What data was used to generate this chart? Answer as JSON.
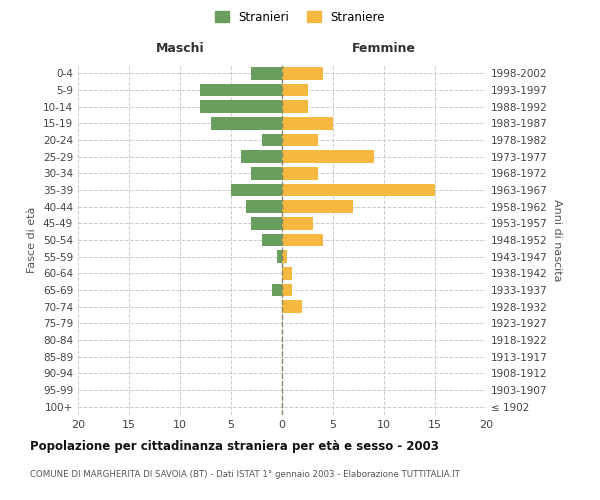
{
  "age_groups": [
    "100+",
    "95-99",
    "90-94",
    "85-89",
    "80-84",
    "75-79",
    "70-74",
    "65-69",
    "60-64",
    "55-59",
    "50-54",
    "45-49",
    "40-44",
    "35-39",
    "30-34",
    "25-29",
    "20-24",
    "15-19",
    "10-14",
    "5-9",
    "0-4"
  ],
  "birth_years": [
    "≤ 1902",
    "1903-1907",
    "1908-1912",
    "1913-1917",
    "1918-1922",
    "1923-1927",
    "1928-1932",
    "1933-1937",
    "1938-1942",
    "1943-1947",
    "1948-1952",
    "1953-1957",
    "1958-1962",
    "1963-1967",
    "1968-1972",
    "1973-1977",
    "1978-1982",
    "1983-1987",
    "1988-1992",
    "1993-1997",
    "1998-2002"
  ],
  "maschi": [
    0,
    0,
    0,
    0,
    0,
    0,
    0,
    1,
    0,
    0.5,
    2,
    3,
    3.5,
    5,
    3,
    4,
    2,
    7,
    8,
    8,
    3
  ],
  "femmine": [
    0,
    0,
    0,
    0,
    0,
    0,
    2,
    1,
    1,
    0.5,
    4,
    3,
    7,
    15,
    3.5,
    9,
    3.5,
    5,
    2.5,
    2.5,
    4
  ],
  "color_maschi": "#6a9e5e",
  "color_femmine": "#f5b942",
  "title": "Popolazione per cittadinanza straniera per età e sesso - 2003",
  "subtitle": "COMUNE DI MARGHERITA DI SAVOIA (BT) - Dati ISTAT 1° gennaio 2003 - Elaborazione TUTTITALIA.IT",
  "ylabel_left": "Fasce di età",
  "ylabel_right": "Anni di nascita",
  "xlabel_maschi": "Maschi",
  "xlabel_femmine": "Femmine",
  "legend_maschi": "Stranieri",
  "legend_femmine": "Straniere",
  "xlim": 20,
  "background_color": "#ffffff",
  "grid_color": "#cccccc"
}
